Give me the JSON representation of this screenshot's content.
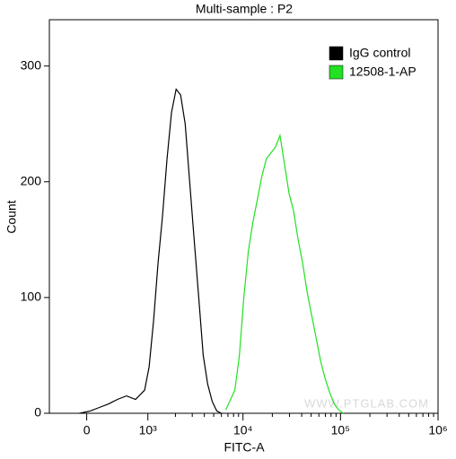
{
  "chart_data": {
    "type": "histogram_line",
    "title": "Multi-sample : P2",
    "xlabel": "FITC-A",
    "ylabel": "Count",
    "watermark": "WWW.PTGLAB.COM",
    "xscale": {
      "type": "arcsinh",
      "cofactor": 500
    },
    "xlim": [
      -500,
      1000000
    ],
    "ylim": [
      0,
      340
    ],
    "xticks": [
      0,
      {
        "value": 1000,
        "label": "10³"
      },
      {
        "value": 10000,
        "label": "10⁴"
      },
      {
        "value": 100000,
        "label": "10⁵"
      },
      {
        "value": 1000000,
        "label": "10⁶"
      }
    ],
    "xminorticks": [
      2000,
      3000,
      4000,
      5000,
      6000,
      7000,
      8000,
      9000,
      20000,
      30000,
      40000,
      50000,
      60000,
      70000,
      80000,
      90000,
      200000,
      300000,
      400000,
      500000,
      600000,
      700000,
      800000,
      900000
    ],
    "yticks": [
      0,
      100,
      200,
      300
    ],
    "legend": "top-right",
    "series": [
      {
        "name": "IgG control",
        "color": "#000000",
        "x": [
          -85,
          43,
          152,
          267,
          396,
          541,
          713,
          916,
          1032,
          1160,
          1300,
          1455,
          1630,
          1820,
          2035,
          2265,
          2530,
          2820,
          3140,
          3500,
          3900,
          4340,
          4835,
          5380,
          5990
        ],
        "values": [
          0,
          2,
          5,
          8,
          12,
          15,
          12,
          20,
          40,
          80,
          130,
          170,
          220,
          260,
          280,
          275,
          250,
          200,
          150,
          100,
          50,
          25,
          10,
          2,
          0
        ]
      },
      {
        "name": "12508-1-AP",
        "color": "#22e022",
        "x": [
          6660,
          8250,
          9180,
          10200,
          11350,
          12630,
          14060,
          15640,
          17400,
          19370,
          21540,
          23970,
          26670,
          29670,
          33000,
          36720,
          40850,
          45450,
          50550,
          56250,
          62560,
          69600,
          77450,
          86150,
          95800,
          106600
        ],
        "values": [
          3,
          20,
          50,
          100,
          140,
          165,
          185,
          205,
          220,
          225,
          230,
          240,
          215,
          190,
          175,
          150,
          130,
          105,
          85,
          65,
          45,
          30,
          18,
          8,
          3,
          0
        ]
      }
    ]
  }
}
